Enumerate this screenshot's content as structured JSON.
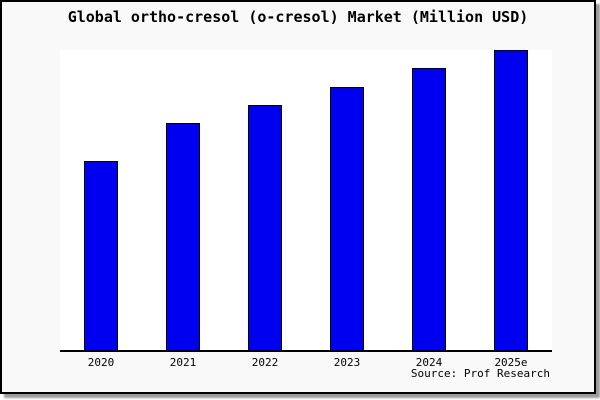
{
  "chart_data": {
    "type": "bar",
    "title": "Global ortho-cresol (o-cresol) Market (Million USD)",
    "source": "Source: Prof Research",
    "categories": [
      "2020",
      "2021",
      "2022",
      "2023",
      "2024",
      "2025e"
    ],
    "values": [
      62.7,
      75.4,
      81.4,
      87.4,
      93.7,
      99.7
    ],
    "xlabel": "",
    "ylabel": "",
    "ylim": [
      0,
      100
    ],
    "y_axis": "unlabeled - no ticks, no gridlines; values are bar heights as percent of full plot height",
    "grid": false,
    "legend": "none",
    "bar_color": "#0000F0",
    "bar_border_color": "#000000",
    "plot_bg": "#FFFFFF",
    "canvas_bg": "#F9F9F9"
  }
}
